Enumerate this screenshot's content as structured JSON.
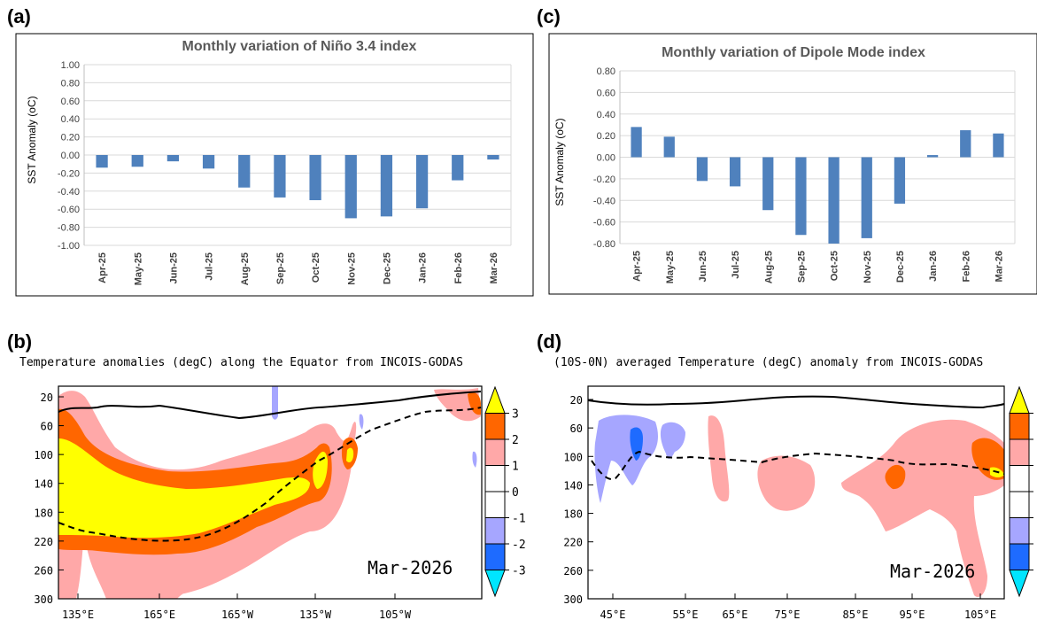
{
  "chart_data": [
    {
      "type": "bar",
      "panel": "(a)",
      "title": "Monthly variation of Niño 3.4 index",
      "ylabel": "SST Anomaly (oC)",
      "categories": [
        "Apr-25",
        "May-25",
        "Jun-25",
        "Jul-25",
        "Aug-25",
        "Sep-25",
        "Oct-25",
        "Nov-25",
        "Dec-25",
        "Jan-26",
        "Feb-26",
        "Mar-26"
      ],
      "values": [
        -0.14,
        -0.13,
        -0.07,
        -0.15,
        -0.36,
        -0.47,
        -0.5,
        -0.7,
        -0.68,
        -0.59,
        -0.28,
        -0.05
      ],
      "ylim": [
        -1.0,
        1.0
      ],
      "yticks": [
        "1.00",
        "0.80",
        "0.60",
        "0.40",
        "0.20",
        "0.00",
        "-0.20",
        "-0.40",
        "-0.60",
        "-0.80",
        "-1.00"
      ],
      "grid": true,
      "color": "#4f81bd"
    },
    {
      "type": "bar",
      "panel": "(c)",
      "title": "Monthly variation of Dipole Mode index",
      "ylabel": "SST Anomaly (oC)",
      "categories": [
        "Apr-25",
        "May-25",
        "Jun-25",
        "Jul-25",
        "Aug-25",
        "Sep-25",
        "Oct-25",
        "Nov-25",
        "Dec-25",
        "Jan-26",
        "Feb-26",
        "Mar-26"
      ],
      "values": [
        0.28,
        0.19,
        -0.22,
        -0.27,
        -0.49,
        -0.72,
        -0.8,
        -0.75,
        -0.43,
        0.02,
        0.25,
        0.22
      ],
      "ylim": [
        -0.8,
        0.8
      ],
      "yticks": [
        "0.80",
        "0.60",
        "0.40",
        "0.20",
        "0.00",
        "-0.20",
        "-0.40",
        "-0.60",
        "-0.80"
      ],
      "grid": true,
      "color": "#4f81bd"
    },
    {
      "type": "heatmap",
      "panel": "(b)",
      "title": "Temperature anomalies (degC) along the Equator from INCOIS-GODAS",
      "annotation": "Mar-2026",
      "xticks": [
        "135°E",
        "165°E",
        "165°W",
        "135°W",
        "105°W"
      ],
      "yticks": [
        "20",
        "60",
        "100",
        "140",
        "180",
        "220",
        "260",
        "300"
      ],
      "colorbar_labels": [
        "3",
        "2",
        "1",
        "0",
        "-1",
        "-2",
        "-3"
      ],
      "colorbar_colors": [
        "#ffff00",
        "#ff6600",
        "#ffa8a8",
        "#ffffff",
        "#ffffff",
        "#a6a6ff",
        "#1e6bff",
        "#00e5ff"
      ]
    },
    {
      "type": "heatmap",
      "panel": "(d)",
      "title": "(10S-0N) averaged Temperature (degC) anomaly from INCOIS-GODAS",
      "annotation": "Mar-2026",
      "xticks": [
        "45°E",
        "55°E",
        "65°E",
        "75°E",
        "85°E",
        "95°E",
        "105°E"
      ],
      "yticks": [
        "20",
        "60",
        "100",
        "140",
        "180",
        "220",
        "260",
        "300"
      ],
      "colorbar_colors": [
        "#ffff00",
        "#ff6600",
        "#ffa8a8",
        "#ffffff",
        "#ffffff",
        "#a6a6ff",
        "#1e6bff",
        "#00e5ff"
      ]
    }
  ]
}
